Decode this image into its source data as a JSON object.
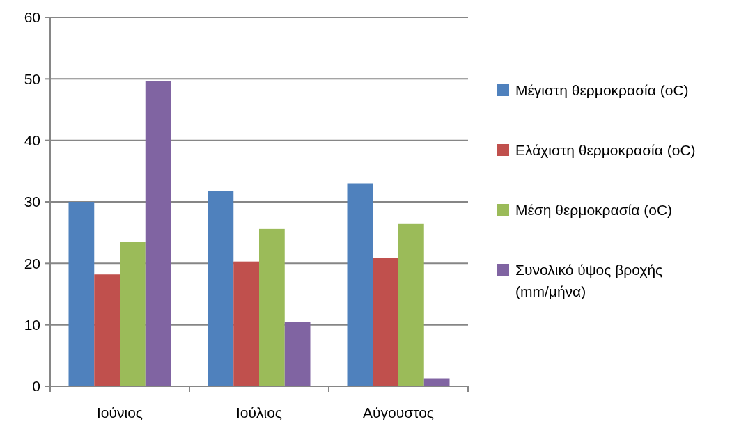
{
  "chart_data": {
    "type": "bar",
    "categories": [
      "Ιούνιος",
      "Ιούλιος",
      "Αύγουστος"
    ],
    "series": [
      {
        "name": "Μέγιστη θερμοκρασία (oC)",
        "color": "#4f81bd",
        "values": [
          30.0,
          31.7,
          33.0
        ]
      },
      {
        "name": "Ελάχιστη θερμοκρασία (oC)",
        "color": "#c0504d",
        "values": [
          18.2,
          20.3,
          20.9
        ]
      },
      {
        "name": "Μέση θερμοκρασία (oC)",
        "color": "#9bbb59",
        "values": [
          23.5,
          25.6,
          26.4
        ]
      },
      {
        "name": "Συνολικό ύψος βροχής (mm/μήνα)",
        "color": "#8064a2",
        "values": [
          49.6,
          10.5,
          1.3
        ]
      }
    ],
    "ylim": [
      0,
      60
    ],
    "yticks": [
      0,
      10,
      20,
      30,
      40,
      50,
      60
    ],
    "grid": "y",
    "legend": "right"
  }
}
